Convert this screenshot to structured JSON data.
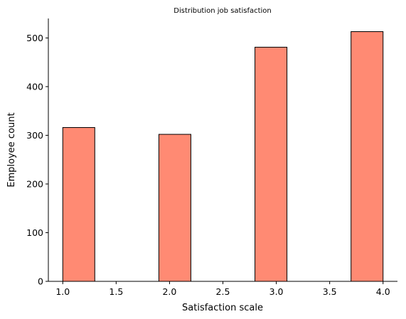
{
  "chart_data": {
    "type": "bar",
    "title": "Distribution job satisfaction",
    "xlabel": "Satisfaction scale",
    "ylabel": "Employee count",
    "xlim": [
      0.865,
      4.135
    ],
    "ylim": [
      0,
      540
    ],
    "xticks": [
      "1.0",
      "1.5",
      "2.0",
      "2.5",
      "3.0",
      "3.5",
      "4.0"
    ],
    "yticks": [
      "0",
      "100",
      "200",
      "300",
      "400",
      "500"
    ],
    "bars": [
      {
        "x_start": 1.0,
        "x_end": 1.3,
        "value": 316
      },
      {
        "x_start": 1.9,
        "x_end": 2.2,
        "value": 302
      },
      {
        "x_start": 2.8,
        "x_end": 3.1,
        "value": 481
      },
      {
        "x_start": 3.7,
        "x_end": 4.0,
        "value": 513
      }
    ],
    "bar_color": "#ff8a73",
    "grid": false
  }
}
